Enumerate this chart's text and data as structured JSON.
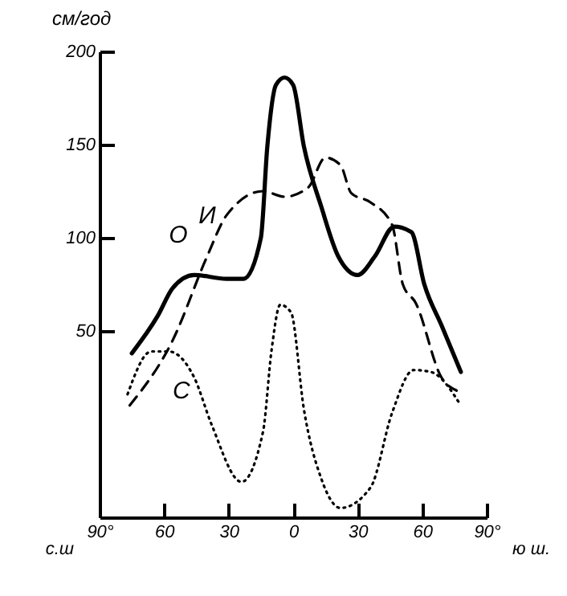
{
  "chart_data": {
    "type": "line",
    "ylabel": "см/год",
    "xlim": [
      90,
      -90
    ],
    "xticks": [
      {
        "value": 90,
        "label": "90°"
      },
      {
        "value": 60,
        "label": "60"
      },
      {
        "value": 30,
        "label": "30"
      },
      0,
      {
        "value": -30,
        "label": "30"
      },
      {
        "value": -60,
        "label": "60"
      },
      {
        "value": -90,
        "label": "90°"
      }
    ],
    "annotations": [
      "с.ш",
      "ю ш."
    ],
    "ylim": [
      -50,
      200
    ],
    "yticks": [
      50,
      100,
      150,
      200
    ],
    "grid": false,
    "marker": "none",
    "series": [
      {
        "name": "О",
        "color": "#000000",
        "line_style": "solid",
        "x": [
          75,
          63,
          56,
          46,
          31,
          23,
          15,
          12,
          8,
          4,
          0,
          -5,
          -13,
          -21,
          -30,
          -38,
          -47,
          -55,
          -61,
          -69,
          -78
        ],
        "values": [
          38,
          58,
          73,
          80,
          78,
          78,
          100,
          149,
          182,
          186,
          182,
          149,
          117,
          90,
          80,
          90,
          106,
          103,
          75,
          53,
          28
        ]
      },
      {
        "name": "И",
        "color": "#000000",
        "line_style": "dashed",
        "x": [
          76,
          56,
          40,
          31,
          14,
          4,
          -7,
          -15,
          -22,
          -27,
          -36,
          -46,
          -51,
          -57,
          -69,
          -76
        ],
        "values": [
          10,
          45,
          90,
          112,
          125,
          122,
          127,
          143,
          139,
          124,
          119,
          107,
          75,
          65,
          25,
          18
        ]
      },
      {
        "name": "С",
        "color": "#000000",
        "line_style": "dotted",
        "x": [
          77,
          66,
          58,
          46,
          38,
          24,
          14,
          10,
          6,
          1,
          -5,
          -13,
          -22,
          -36,
          -46,
          -56,
          -64,
          -78
        ],
        "values": [
          16,
          39,
          39,
          25,
          0,
          -31,
          -4,
          40,
          64,
          60,
          8,
          -29,
          -45,
          -34,
          6,
          29,
          28,
          10
        ]
      }
    ]
  }
}
